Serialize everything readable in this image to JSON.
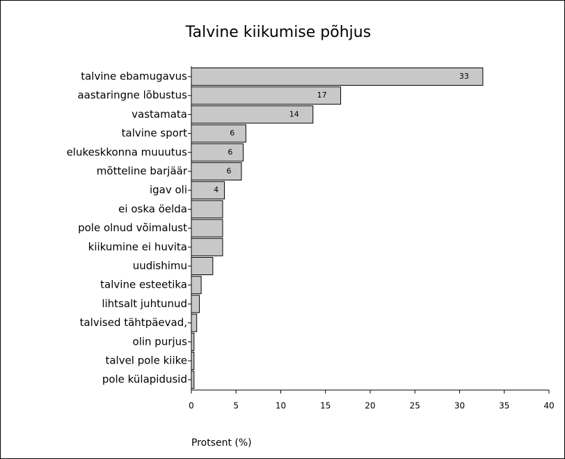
{
  "chart_data": {
    "type": "bar",
    "orientation": "horizontal",
    "title": "Talvine kiikumise põhjus",
    "x_label": "Protsent (%)",
    "categories": [
      "talvine ebamugavus",
      "aastaringne lõbustus",
      "vastamata",
      "talvine sport",
      "elukeskkonna muuutus",
      "mõtteline barjäär",
      "igav oli",
      "ei oska öelda",
      "pole olnud võimalust",
      "kiikumine ei huvita",
      "uudishimu",
      "talvine esteetika",
      "lihtsalt juhtunud",
      "talvised tähtpäevad,",
      "olin purjus",
      "talvel pole kiike",
      "pole külapidusid"
    ],
    "values": [
      32.6,
      16.7,
      13.6,
      6.1,
      5.8,
      5.6,
      3.7,
      3.5,
      3.5,
      3.5,
      2.4,
      1.1,
      0.9,
      0.6,
      0.3,
      0.3,
      0.3
    ],
    "value_labels": [
      "33",
      "17",
      "14",
      "6",
      "6",
      "6",
      "4",
      null,
      null,
      null,
      null,
      null,
      null,
      null,
      null,
      null,
      null
    ],
    "color": "#c8c8c8",
    "xlim": [
      0,
      40
    ],
    "xticks": [
      0,
      5,
      10,
      15,
      20,
      25,
      30,
      35,
      40
    ]
  }
}
